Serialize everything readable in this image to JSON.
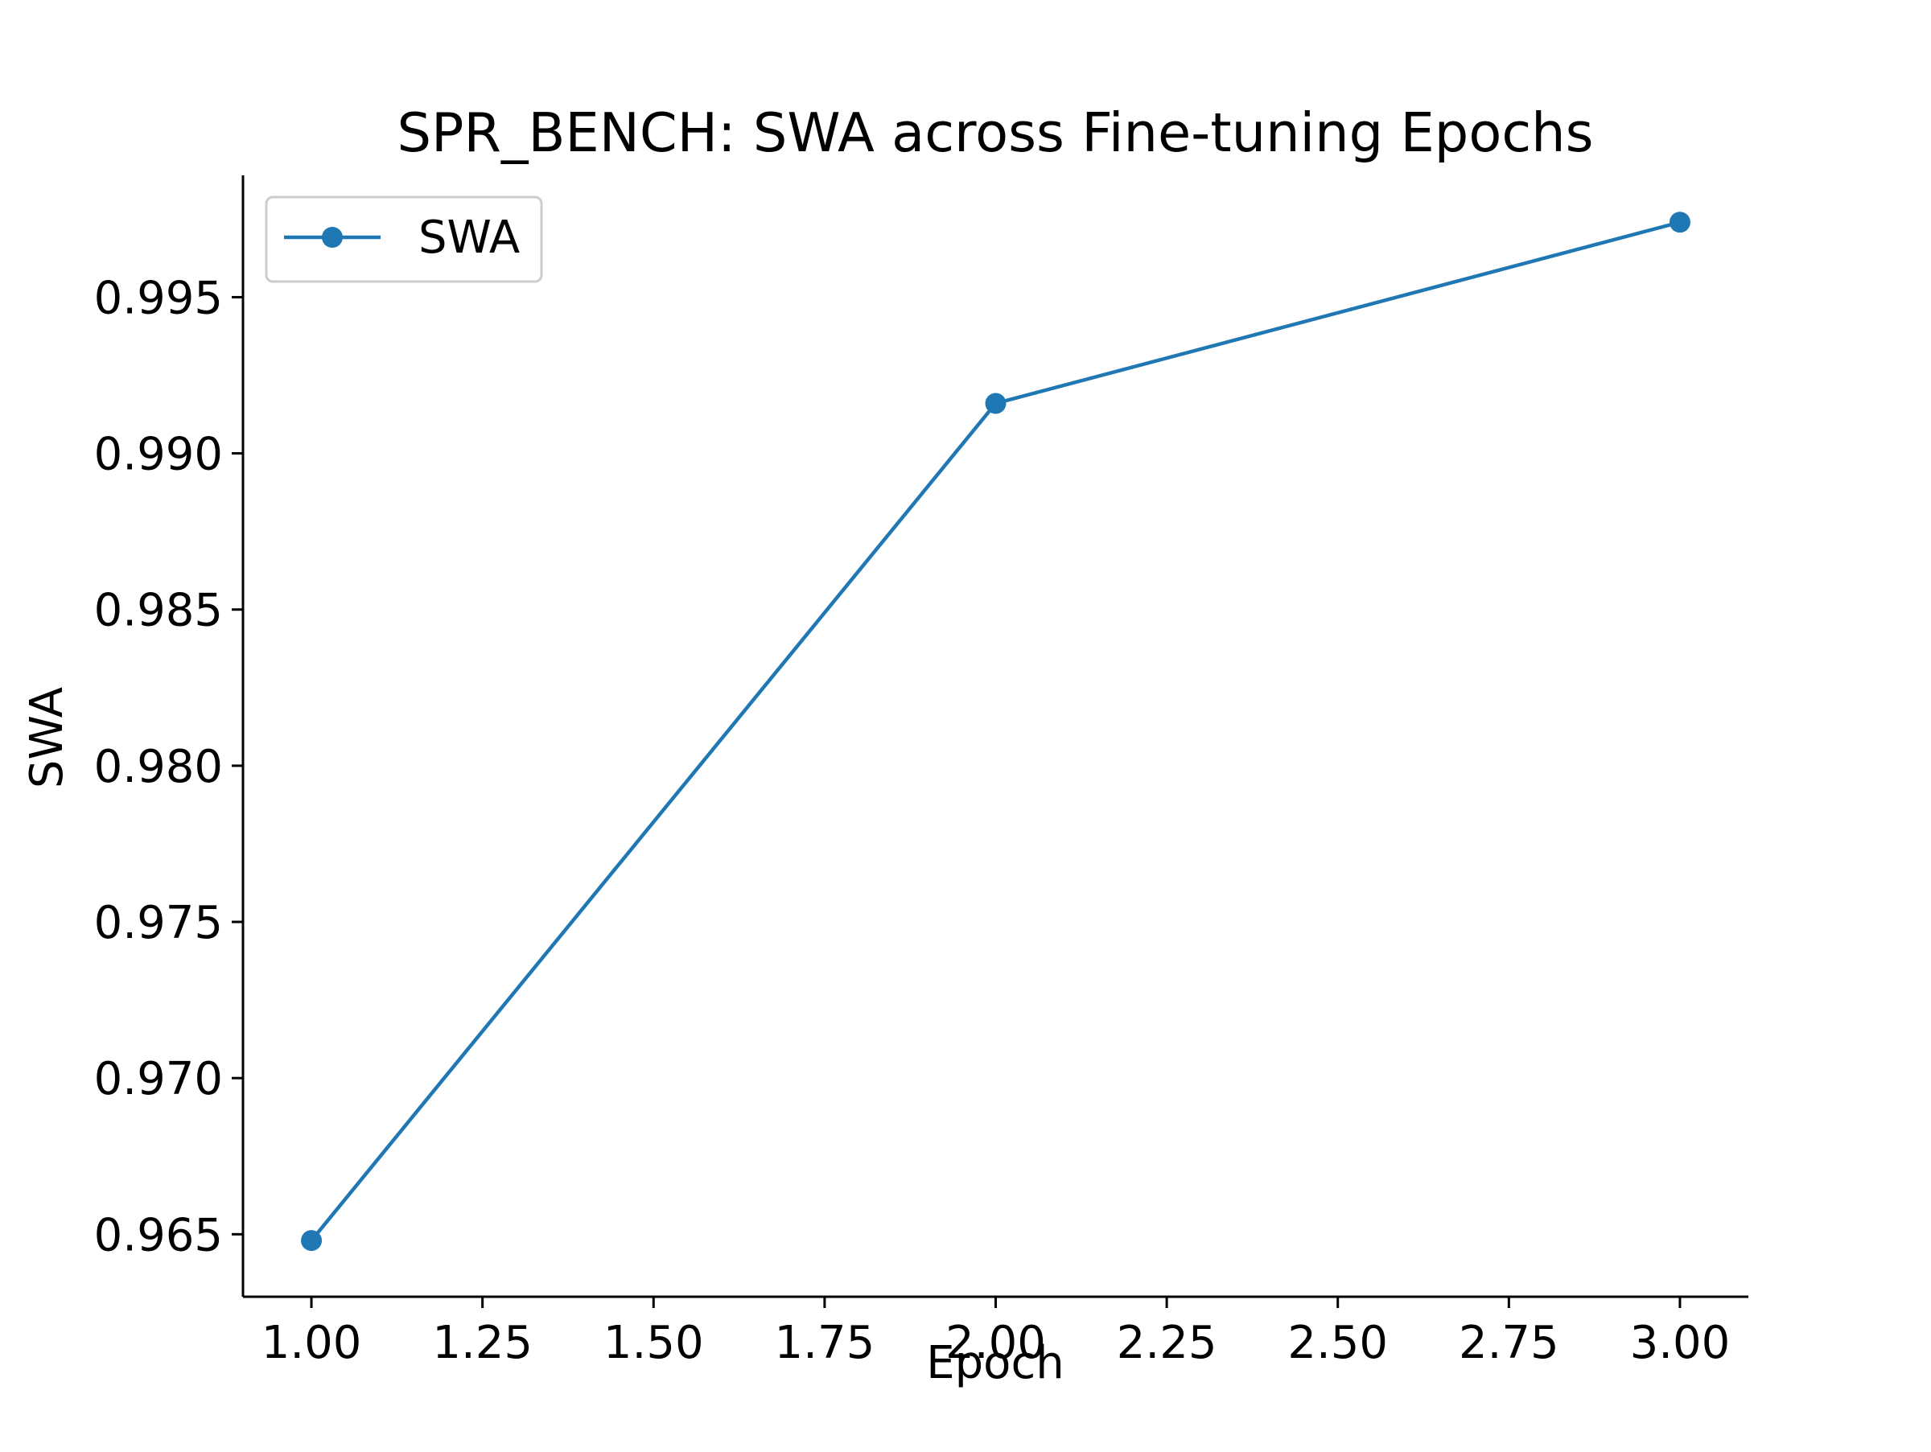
{
  "chart_data": {
    "type": "line",
    "title": "SPR_BENCH: SWA across Fine-tuning Epochs",
    "xlabel": "Epoch",
    "ylabel": "SWA",
    "x": [
      1,
      2,
      3
    ],
    "series": [
      {
        "name": "SWA",
        "values": [
          0.9648,
          0.9916,
          0.9974
        ],
        "color": "#1f77b4",
        "marker": "circle"
      }
    ],
    "xlim": [
      0.9,
      3.1
    ],
    "ylim": [
      0.963,
      0.9989
    ],
    "xticks": [
      1.0,
      1.25,
      1.5,
      1.75,
      2.0,
      2.25,
      2.5,
      2.75,
      3.0
    ],
    "xtick_labels": [
      "1.00",
      "1.25",
      "1.50",
      "1.75",
      "2.00",
      "2.25",
      "2.50",
      "2.75",
      "3.00"
    ],
    "yticks": [
      0.965,
      0.97,
      0.975,
      0.98,
      0.985,
      0.99,
      0.995
    ],
    "ytick_labels": [
      "0.965",
      "0.970",
      "0.975",
      "0.980",
      "0.985",
      "0.990",
      "0.995"
    ],
    "grid": false,
    "legend": {
      "position": "top-left",
      "entries": [
        "SWA"
      ]
    },
    "spines": {
      "top": false,
      "right": false
    }
  }
}
